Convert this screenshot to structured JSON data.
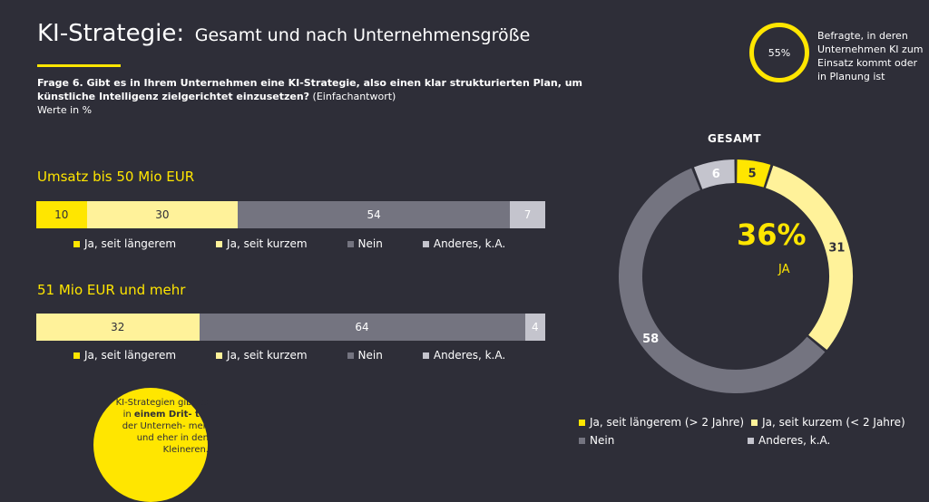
{
  "header": {
    "title_main": "KI-Strategie:",
    "title_sub": "Gesamt und nach Unternehmensgröße",
    "question_bold": "Frage 6. Gibt es in Ihrem Unternehmen eine KI-Strategie, also einen klar strukturierten Plan, um künstliche Intelligenz zielgerichtet einzusetzen?",
    "question_note": "(Einfachantwort)",
    "unit_note": "Werte in %"
  },
  "highlight": {
    "value": "55%",
    "text": "Befragte, in deren Unternehmen KI zum Einsatz kommt oder in Planung ist"
  },
  "callout": {
    "pre": "KI-Strategien gibt es in",
    "bold": "einem Drit- tel",
    "post": "der Unterneh- men und eher in den Kleineren."
  },
  "colors": {
    "ja_laenger": "#ffe600",
    "ja_kurz": "#fff29a",
    "nein": "#747480",
    "anderes": "#c4c4cd",
    "background": "#2e2e38"
  },
  "chart_data": [
    {
      "type": "bar",
      "orientation": "horizontal-stacked",
      "title": "Umsatz bis 50 Mio EUR",
      "series": [
        {
          "name": "Ja, seit längerem",
          "values": [
            10
          ]
        },
        {
          "name": "Ja, seit kurzem",
          "values": [
            30
          ]
        },
        {
          "name": "Nein",
          "values": [
            54
          ]
        },
        {
          "name": "Anderes, k.A.",
          "values": [
            7
          ]
        }
      ]
    },
    {
      "type": "bar",
      "orientation": "horizontal-stacked",
      "title": "51 Mio EUR und mehr",
      "series": [
        {
          "name": "Ja, seit längerem",
          "values": [
            0
          ]
        },
        {
          "name": "Ja, seit kurzem",
          "values": [
            32
          ]
        },
        {
          "name": "Nein",
          "values": [
            64
          ]
        },
        {
          "name": "Anderes, k.A.",
          "values": [
            4
          ]
        }
      ]
    },
    {
      "type": "pie",
      "title": "GESAMT",
      "center_value": "36%",
      "center_label": "JA",
      "slices": [
        {
          "name": "Ja, seit längerem (> 2 Jahre)",
          "value": 5
        },
        {
          "name": "Ja, seit kurzem (< 2 Jahre)",
          "value": 31
        },
        {
          "name": "Nein",
          "value": 58
        },
        {
          "name": "Anderes, k.A.",
          "value": 6
        }
      ]
    }
  ]
}
